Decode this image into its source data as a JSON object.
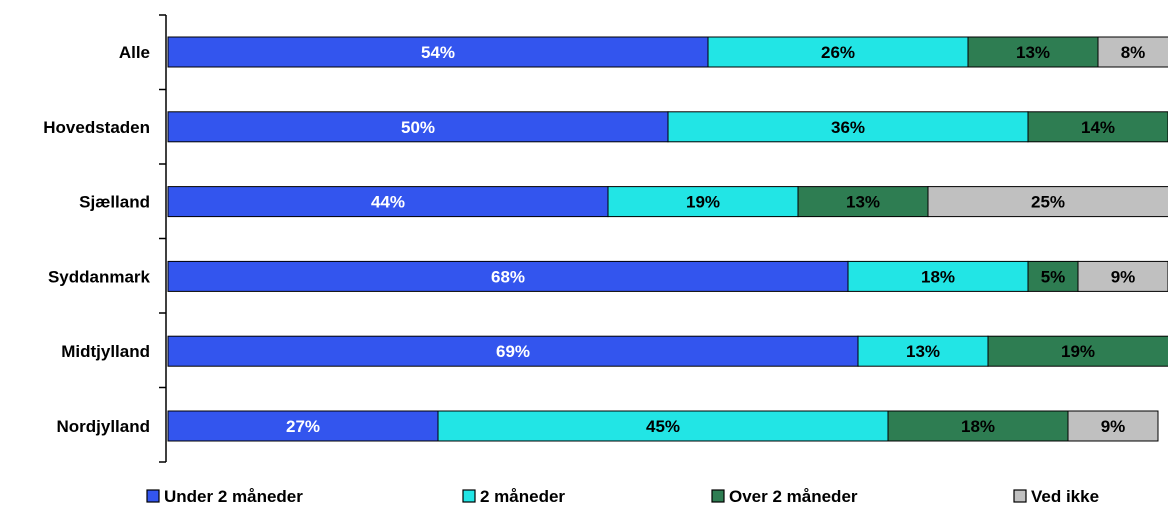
{
  "chart_data": {
    "type": "bar",
    "orientation": "horizontal",
    "stacked": true,
    "categories": [
      "Alle",
      "Hovedstaden",
      "Sjælland",
      "Syddanmark",
      "Midtjylland",
      "Nordjylland"
    ],
    "series": [
      {
        "name": "Under 2 måneder",
        "color": "#3355ee",
        "label_color": "#ffffff",
        "values": [
          54,
          50,
          44,
          68,
          69,
          27
        ],
        "labels": [
          "54%",
          "50%",
          "44%",
          "68%",
          "69%",
          "27%"
        ]
      },
      {
        "name": "2 måneder",
        "color": "#22e5e5",
        "label_color": "#000000",
        "values": [
          26,
          36,
          19,
          18,
          13,
          45
        ],
        "labels": [
          "26%",
          "36%",
          "19%",
          "18%",
          "13%",
          "45%"
        ]
      },
      {
        "name": "Over 2 måneder",
        "color": "#2e7d52",
        "label_color": "#000000",
        "values": [
          13,
          14,
          13,
          5,
          19,
          18
        ],
        "labels": [
          "13%",
          "14%",
          "13%",
          "5%",
          "19%",
          "18%"
        ]
      },
      {
        "name": "Ved ikke",
        "color": "#c0c0c0",
        "label_color": "#000000",
        "values": [
          8,
          0,
          25,
          9,
          0,
          9
        ],
        "labels": [
          "8%",
          "",
          "25%",
          "9%",
          "",
          "9%"
        ]
      }
    ],
    "xlim": [
      0,
      100
    ],
    "grid": false,
    "legend": "bottom"
  }
}
